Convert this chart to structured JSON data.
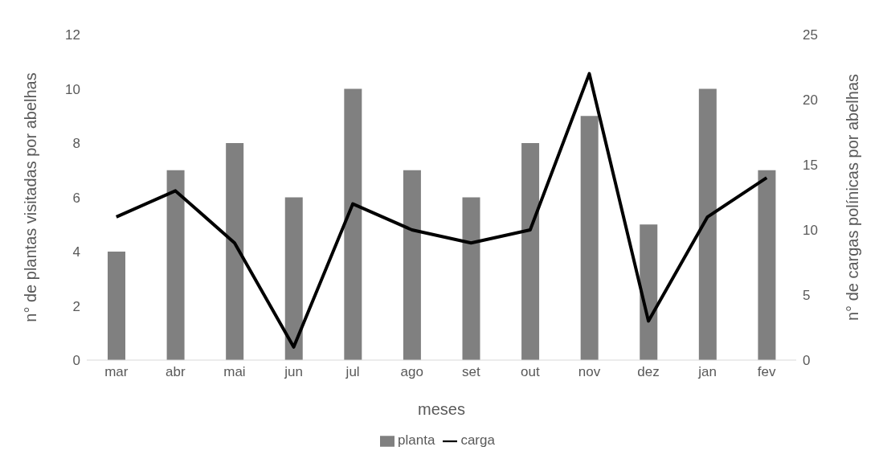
{
  "chart_data": {
    "type": "bar",
    "xlabel": "meses",
    "ylabel": "n° de plantas visitadas por abelhas",
    "y2label": "n° de cargas polínicas por abelhas",
    "categories": [
      "mar",
      "abr",
      "mai",
      "jun",
      "jul",
      "ago",
      "set",
      "out",
      "nov",
      "dez",
      "jan",
      "fev"
    ],
    "series": [
      {
        "name": "planta",
        "color": "#808080",
        "values": [
          4,
          7,
          8,
          6,
          10,
          7,
          6,
          8,
          9,
          5,
          10,
          7
        ]
      },
      {
        "name": "carga",
        "type": "line",
        "axis": "y2",
        "color": "#000000",
        "values": [
          11,
          13,
          9,
          1,
          12,
          10,
          9,
          10,
          22,
          3,
          11,
          14
        ]
      }
    ],
    "ylim": [
      0,
      12
    ],
    "yticks": [
      0,
      2,
      4,
      6,
      8,
      10,
      12
    ],
    "y2lim": [
      0,
      25
    ],
    "y2ticks": [
      0,
      5,
      10,
      15,
      20,
      25
    ],
    "grid": false,
    "legend": "bottom",
    "marker": "none"
  }
}
